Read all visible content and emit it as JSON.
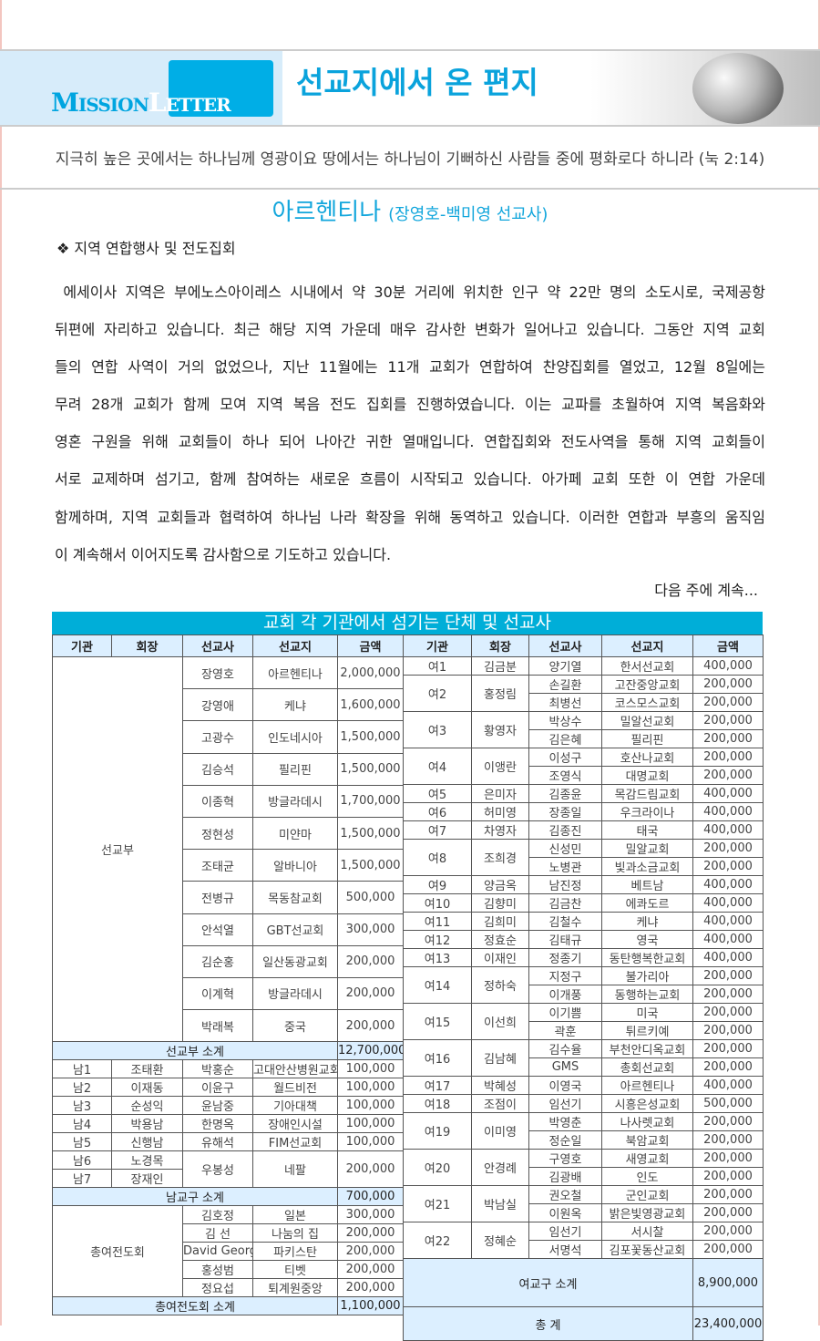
{
  "header": {
    "logo_part1": "Mission",
    "logo_part2": "Letter",
    "title": "선교지에서 온 편지"
  },
  "verse": "지극히 높은 곳에서는 하나님께 영광이요 땅에서는 하나님이 기뻐하신 사람들 중에 평화로다 하니라 (눅 2:14)",
  "article": {
    "country": "아르헨티나",
    "missionaries": "(장영호-백미영 선교사)",
    "section": "❖ 지역 연합행사 및 전도집회",
    "lines": [
      " 에세이사 지역은 부에노스아이레스 시내에서 약 30분 거리에 위치한 인구 약 22만 명의 소도시로, 국제공항",
      "뒤편에 자리하고 있습니다. 최근 해당 지역 가운데 매우 감사한 변화가 일어나고 있습니다. 그동안 지역 교회",
      "들의 연합 사역이 거의 없었으나, 지난 11월에는 11개 교회가 연합하여 찬양집회를 열었고, 12월 8일에는",
      "무려 28개 교회가 함께 모여 지역 복음 전도 집회를 진행하였습니다. 이는 교파를 초월하여 지역 복음화와",
      "영혼 구원을 위해 교회들이 하나 되어 나아간 귀한 열매입니다. 연합집회와 전도사역을 통해 지역 교회들이",
      "서로 교제하며 섬기고, 함께 참여하는 새로운 흐름이 시작되고 있습니다. 아가페 교회 또한 이 연합 가운데",
      "함께하며, 지역 교회들과 협력하여 하나님 나라 확장을 위해 동역하고 있습니다. 이러한 연합과 부흥의 움직임",
      "이 계속해서 이어지도록 감사함으로 기도하고 있습니다."
    ],
    "continued": "다음 주에 계속..."
  },
  "table": {
    "title": "교회 각 기관에서 섬기는 단체 및 선교사",
    "columns": [
      "기관",
      "회장",
      "선교사",
      "선교지",
      "금액"
    ],
    "mission_dept": {
      "label": "선교부",
      "rows": [
        [
          "장영호",
          "아르헨티나",
          "2,000,000"
        ],
        [
          "강영애",
          "케냐",
          "1,600,000"
        ],
        [
          "고광수",
          "인도네시아",
          "1,500,000"
        ],
        [
          "김승석",
          "필리핀",
          "1,500,000"
        ],
        [
          "이종혁",
          "방글라데시",
          "1,700,000"
        ],
        [
          "정현성",
          "미얀마",
          "1,500,000"
        ],
        [
          "조태균",
          "알바니아",
          "1,500,000"
        ],
        [
          "전병규",
          "목동참교회",
          "500,000"
        ],
        [
          "안석열",
          "GBT선교회",
          "300,000"
        ],
        [
          "김순홍",
          "일산동광교회",
          "200,000"
        ],
        [
          "이계혁",
          "방글라데시",
          "200,000"
        ],
        [
          "박래복",
          "중국",
          "200,000"
        ]
      ],
      "subtotal_label": "선교부 소계",
      "subtotal": "12,700,000"
    },
    "men": {
      "rows": [
        {
          "orgs": [
            [
              "남1",
              "조태환"
            ]
          ],
          "missionary": "박홍순",
          "field": "고대안산병원교회",
          "amount": "100,000"
        },
        {
          "orgs": [
            [
              "남2",
              "이재동"
            ]
          ],
          "missionary": "이윤구",
          "field": "월드비전",
          "amount": "100,000"
        },
        {
          "orgs": [
            [
              "남3",
              "순성익"
            ]
          ],
          "missionary": "윤남중",
          "field": "기아대책",
          "amount": "100,000"
        },
        {
          "orgs": [
            [
              "남4",
              "박용남"
            ]
          ],
          "missionary": "한명옥",
          "field": "장애인시설",
          "amount": "100,000"
        },
        {
          "orgs": [
            [
              "남5",
              "신행남"
            ]
          ],
          "missionary": "유해석",
          "field": "FIM선교회",
          "amount": "100,000"
        },
        {
          "orgs": [
            [
              "남6",
              "노경목"
            ],
            [
              "남7",
              "장재인"
            ]
          ],
          "missionary": "우봉성",
          "field": "네팔",
          "amount": "200,000"
        }
      ],
      "subtotal_label": "남교구 소계",
      "subtotal": "700,000"
    },
    "women_assoc": {
      "label": "총여전도회",
      "rows": [
        [
          "김호정",
          "일본",
          "300,000"
        ],
        [
          "김  선",
          "나눔의 집",
          "200,000"
        ],
        [
          "David George",
          "파키스탄",
          "200,000"
        ],
        [
          "홍성범",
          "티벳",
          "200,000"
        ],
        [
          "정요섭",
          "퇴계원중앙",
          "200,000"
        ]
      ],
      "subtotal_label": "총여전도회 소계",
      "subtotal": "1,100,000"
    },
    "women": {
      "groups": [
        {
          "org": "여1",
          "leader": "김금분",
          "items": [
            [
              "양기열",
              "한서선교회",
              "400,000"
            ]
          ]
        },
        {
          "org": "여2",
          "leader": "홍정림",
          "items": [
            [
              "손길환",
              "고잔중앙교회",
              "200,000"
            ],
            [
              "최병선",
              "코스모스교회",
              "200,000"
            ]
          ]
        },
        {
          "org": "여3",
          "leader": "황영자",
          "items": [
            [
              "박상수",
              "밀알선교회",
              "200,000"
            ],
            [
              "김은혜",
              "필리핀",
              "200,000"
            ]
          ]
        },
        {
          "org": "여4",
          "leader": "이앵란",
          "items": [
            [
              "이성구",
              "호산나교회",
              "200,000"
            ],
            [
              "조영식",
              "대명교회",
              "200,000"
            ]
          ]
        },
        {
          "org": "여5",
          "leader": "은미자",
          "items": [
            [
              "김종윤",
              "목감드림교회",
              "400,000"
            ]
          ]
        },
        {
          "org": "여6",
          "leader": "허미영",
          "items": [
            [
              "장종일",
              "우크라이나",
              "400,000"
            ]
          ]
        },
        {
          "org": "여7",
          "leader": "차영자",
          "items": [
            [
              "김종진",
              "태국",
              "400,000"
            ]
          ]
        },
        {
          "org": "여8",
          "leader": "조희경",
          "items": [
            [
              "신성민",
              "밀알교회",
              "200,000"
            ],
            [
              "노병관",
              "빛과소금교회",
              "200,000"
            ]
          ]
        },
        {
          "org": "여9",
          "leader": "양금옥",
          "items": [
            [
              "남진정",
              "베트남",
              "400,000"
            ]
          ]
        },
        {
          "org": "여10",
          "leader": "김향미",
          "items": [
            [
              "김금찬",
              "에콰도르",
              "400,000"
            ]
          ]
        },
        {
          "org": "여11",
          "leader": "김희미",
          "items": [
            [
              "김철수",
              "케냐",
              "400,000"
            ]
          ]
        },
        {
          "org": "여12",
          "leader": "정효순",
          "items": [
            [
              "김태규",
              "영국",
              "400,000"
            ]
          ]
        },
        {
          "org": "여13",
          "leader": "이재인",
          "items": [
            [
              "정종기",
              "동탄행복한교회",
              "400,000"
            ]
          ]
        },
        {
          "org": "여14",
          "leader": "정하숙",
          "items": [
            [
              "지정구",
              "불가리아",
              "200,000"
            ],
            [
              "이개풍",
              "동행하는교회",
              "200,000"
            ]
          ]
        },
        {
          "org": "여15",
          "leader": "이선희",
          "items": [
            [
              "이기쁨",
              "미국",
              "200,000"
            ],
            [
              "곽훈",
              "튀르키예",
              "200,000"
            ]
          ]
        },
        {
          "org": "여16",
          "leader": "김남혜",
          "items": [
            [
              "김수율",
              "부천안디옥교회",
              "200,000"
            ],
            [
              "GMS",
              "총회선교회",
              "200,000"
            ]
          ]
        },
        {
          "org": "여17",
          "leader": "박혜성",
          "items": [
            [
              "이영국",
              "아르헨티나",
              "400,000"
            ]
          ]
        },
        {
          "org": "여18",
          "leader": "조점이",
          "items": [
            [
              "임선기",
              "시흥은성교회",
              "500,000"
            ]
          ]
        },
        {
          "org": "여19",
          "leader": "이미영",
          "items": [
            [
              "박영춘",
              "나사렛교회",
              "200,000"
            ],
            [
              "정순일",
              "북암교회",
              "200,000"
            ]
          ]
        },
        {
          "org": "여20",
          "leader": "안경례",
          "items": [
            [
              "구영호",
              "새영교회",
              "200,000"
            ],
            [
              "김광배",
              "인도",
              "200,000"
            ]
          ]
        },
        {
          "org": "여21",
          "leader": "박남실",
          "items": [
            [
              "권오철",
              "군인교회",
              "200,000"
            ],
            [
              "이원옥",
              "밝은빛영광교회",
              "200,000"
            ]
          ]
        },
        {
          "org": "여22",
          "leader": "정혜순",
          "items": [
            [
              "임선기",
              "서시찰",
              "200,000"
            ],
            [
              "서명석",
              "김포꽃동산교회",
              "200,000"
            ]
          ]
        }
      ],
      "subtotal_label": "여교구 소계",
      "subtotal": "8,900,000"
    },
    "total_label": "총 계",
    "total": "23,400,000"
  },
  "colors": {
    "accent": "#00aed8",
    "header_fill": "#dcefff",
    "title": "#0aa3dc"
  }
}
